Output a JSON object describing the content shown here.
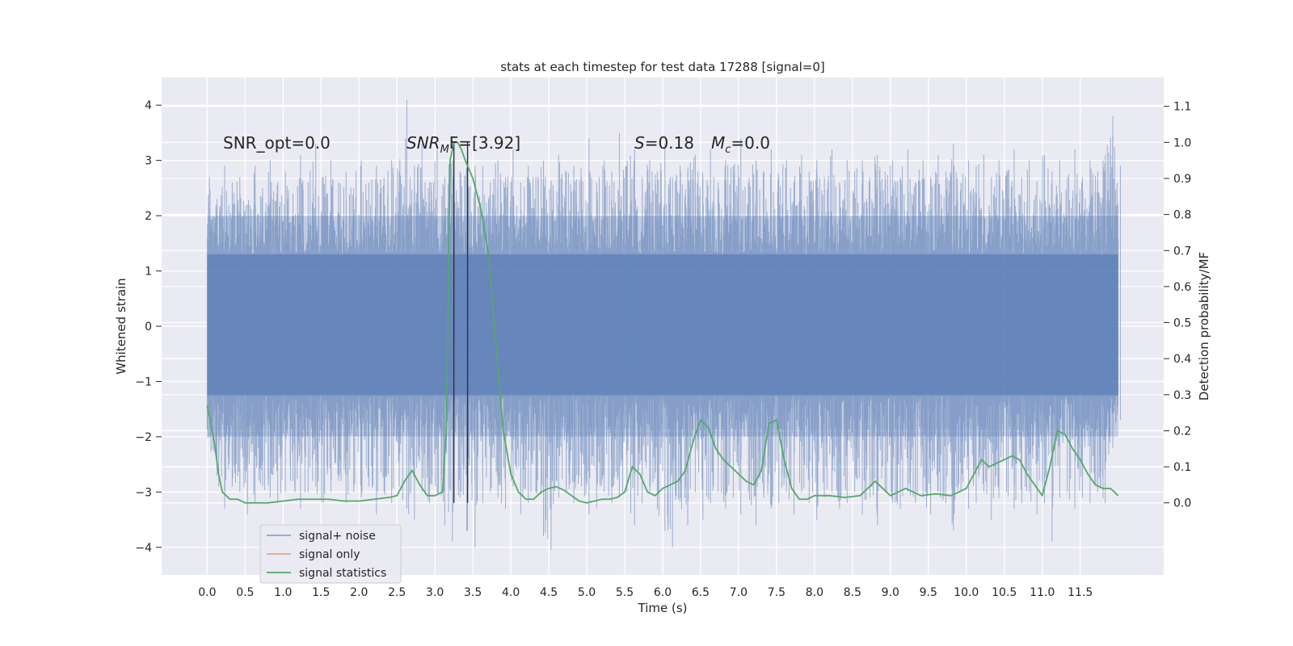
{
  "chart_data": {
    "type": "line",
    "title": "stats at each timestep for test data 17288 [signal=0]",
    "xlabel": "Time (s)",
    "ylabel": "Whitened strain",
    "ylabel_right": "Detection probability/MF",
    "xlim": [
      -0.6,
      12.6
    ],
    "ylim_left": [
      -4.5,
      4.5
    ],
    "ylim_right": [
      -0.2,
      1.18
    ],
    "x_ticks": [
      "0.0",
      "0.5",
      "1.0",
      "1.5",
      "2.0",
      "2.5",
      "3.0",
      "3.5",
      "4.0",
      "4.5",
      "5.0",
      "5.5",
      "6.0",
      "6.5",
      "7.0",
      "7.5",
      "8.0",
      "8.5",
      "9.0",
      "9.5",
      "10.0",
      "10.5",
      "11.0",
      "11.5"
    ],
    "y_ticks_left": [
      "−4",
      "−3",
      "−2",
      "−1",
      "0",
      "1",
      "2",
      "3",
      "4"
    ],
    "y_ticks_right": [
      "0.0",
      "0.1",
      "0.2",
      "0.3",
      "0.4",
      "0.5",
      "0.6",
      "0.7",
      "0.8",
      "0.9",
      "1.0",
      "1.1"
    ],
    "grid": true,
    "annotations": {
      "snr_opt": "SNR_opt=0.0",
      "snr_mf": "SNR",
      "snr_mf_sub": "M",
      "snr_mf_rest": "F=[3.92]",
      "s_label": "S",
      "s_value": "=0.18",
      "mc_label": "M",
      "mc_sub": "c",
      "mc_value": "=0.0"
    },
    "vlines_x": [
      3.25,
      3.43
    ],
    "series": [
      {
        "name": "signal+ noise",
        "color": "#4c72b0",
        "opacity": 0.5,
        "axis": "left",
        "description_x_range": [
          0.0,
          12.0
        ],
        "dense_band": [
          -1.25,
          1.3
        ],
        "x_peaks": [
          0.0,
          0.1,
          0.2,
          0.3,
          0.4,
          0.5,
          0.6,
          0.7,
          0.8,
          0.9,
          1.0,
          1.1,
          1.2,
          1.3,
          1.4,
          1.5,
          1.6,
          1.7,
          1.8,
          1.9,
          2.0,
          2.1,
          2.2,
          2.3,
          2.4,
          2.5,
          2.6,
          2.7,
          2.8,
          2.9,
          3.0,
          3.1,
          3.2,
          3.3,
          3.4,
          3.5,
          3.6,
          3.7,
          3.8,
          3.9,
          4.0,
          4.1,
          4.2,
          4.3,
          4.4,
          4.5,
          4.6,
          4.7,
          4.8,
          4.9,
          5.0,
          5.1,
          5.2,
          5.3,
          5.4,
          5.5,
          5.6,
          5.7,
          5.8,
          5.9,
          6.0,
          6.1,
          6.2,
          6.3,
          6.4,
          6.5,
          6.6,
          6.7,
          6.8,
          6.9,
          7.0,
          7.1,
          7.2,
          7.3,
          7.4,
          7.5,
          7.6,
          7.7,
          7.8,
          7.9,
          8.0,
          8.1,
          8.2,
          8.3,
          8.4,
          8.5,
          8.6,
          8.7,
          8.8,
          8.9,
          9.0,
          9.1,
          9.2,
          9.3,
          9.4,
          9.5,
          9.6,
          9.7,
          9.8,
          9.9,
          10.0,
          10.1,
          10.2,
          10.3,
          10.4,
          10.5,
          10.6,
          10.7,
          10.8,
          10.9,
          11.0,
          11.1,
          11.2,
          11.3,
          11.4,
          11.5,
          11.6,
          11.7,
          11.8,
          11.9,
          12.0
        ],
        "max_envelope": [
          2.7,
          2.3,
          2.9,
          2.6,
          2.7,
          2.2,
          2.9,
          2.5,
          3.0,
          2.6,
          2.8,
          2.4,
          3.1,
          2.6,
          3.3,
          2.7,
          3.0,
          2.6,
          2.8,
          2.5,
          3.0,
          2.6,
          2.9,
          2.7,
          3.0,
          2.8,
          4.1,
          2.9,
          3.3,
          2.6,
          3.2,
          2.7,
          3.0,
          2.8,
          3.1,
          2.9,
          2.9,
          2.6,
          3.0,
          2.7,
          3.2,
          2.6,
          2.9,
          2.7,
          3.0,
          2.6,
          3.1,
          2.8,
          2.9,
          2.7,
          3.4,
          2.6,
          3.0,
          2.8,
          3.5,
          2.9,
          3.2,
          2.7,
          3.0,
          2.8,
          3.3,
          2.7,
          2.9,
          2.8,
          3.1,
          2.7,
          3.2,
          2.6,
          3.0,
          2.9,
          3.4,
          2.6,
          3.0,
          2.8,
          3.2,
          2.7,
          3.0,
          2.6,
          3.1,
          2.8,
          3.0,
          2.7,
          3.2,
          2.6,
          3.0,
          2.8,
          3.0,
          2.7,
          3.1,
          2.8,
          3.0,
          2.7,
          3.2,
          2.6,
          3.0,
          2.7,
          3.1,
          2.8,
          3.3,
          2.6,
          3.0,
          2.9,
          3.1,
          2.7,
          3.0,
          2.8,
          3.2,
          2.7,
          3.0,
          2.6,
          3.1,
          2.8,
          3.0,
          2.7,
          3.2,
          2.7,
          3.0,
          2.8,
          3.1,
          3.8,
          2.9
        ],
        "min_envelope": [
          -2.0,
          -2.7,
          -3.3,
          -2.9,
          -3.0,
          -3.4,
          -3.2,
          -2.9,
          -3.1,
          -3.2,
          -3.0,
          -2.8,
          -3.3,
          -3.0,
          -2.9,
          -3.2,
          -3.0,
          -2.8,
          -3.2,
          -3.0,
          -3.1,
          -2.9,
          -3.4,
          -3.0,
          -3.2,
          -2.9,
          -3.3,
          -3.5,
          -3.0,
          -3.2,
          -3.0,
          -3.6,
          -3.9,
          -3.1,
          -3.7,
          -4.0,
          -3.2,
          -3.0,
          -3.1,
          -3.3,
          -2.9,
          -3.4,
          -3.2,
          -3.0,
          -3.8,
          -4.05,
          -3.1,
          -3.0,
          -3.2,
          -2.9,
          -3.4,
          -3.3,
          -3.0,
          -3.2,
          -3.1,
          -3.0,
          -3.6,
          -3.2,
          -3.0,
          -3.3,
          -3.7,
          -4.0,
          -3.1,
          -3.6,
          -3.0,
          -3.5,
          -3.2,
          -3.0,
          -3.3,
          -3.1,
          -3.4,
          -3.0,
          -3.6,
          -3.1,
          -3.3,
          -3.2,
          -3.0,
          -3.4,
          -3.0,
          -3.2,
          -3.5,
          -3.1,
          -3.0,
          -3.3,
          -3.2,
          -3.0,
          -3.4,
          -3.1,
          -3.6,
          -3.0,
          -3.2,
          -3.3,
          -3.0,
          -3.2,
          -3.1,
          -3.4,
          -3.0,
          -3.2,
          -3.7,
          -3.0,
          -3.3,
          -3.2,
          -3.0,
          -3.5,
          -3.1,
          -3.0,
          -3.3,
          -3.2,
          -3.0,
          -3.4,
          -3.2,
          -3.9,
          -3.1,
          -3.0,
          -3.3,
          -3.1,
          -3.2,
          -3.0,
          -3.2,
          -2.2,
          -1.7
        ]
      },
      {
        "name": "signal only",
        "color": "#dd8452",
        "axis": "left",
        "x": [],
        "y": []
      },
      {
        "name": "signal statistics",
        "color": "#55a868",
        "axis": "right",
        "x": [
          0.0,
          0.05,
          0.1,
          0.15,
          0.2,
          0.3,
          0.4,
          0.5,
          0.6,
          0.8,
          1.0,
          1.2,
          1.4,
          1.6,
          1.8,
          2.0,
          2.2,
          2.4,
          2.5,
          2.6,
          2.7,
          2.8,
          2.9,
          3.0,
          3.1,
          3.15,
          3.2,
          3.25,
          3.3,
          3.35,
          3.4,
          3.5,
          3.6,
          3.7,
          3.8,
          3.9,
          4.0,
          4.1,
          4.2,
          4.3,
          4.4,
          4.5,
          4.6,
          4.7,
          4.8,
          4.9,
          5.0,
          5.1,
          5.2,
          5.3,
          5.4,
          5.5,
          5.6,
          5.7,
          5.8,
          5.9,
          6.0,
          6.1,
          6.2,
          6.3,
          6.4,
          6.5,
          6.6,
          6.7,
          6.8,
          6.9,
          7.0,
          7.1,
          7.2,
          7.3,
          7.4,
          7.5,
          7.6,
          7.7,
          7.8,
          7.9,
          8.0,
          8.2,
          8.4,
          8.6,
          8.8,
          9.0,
          9.2,
          9.4,
          9.6,
          9.8,
          10.0,
          10.1,
          10.2,
          10.3,
          10.4,
          10.5,
          10.6,
          10.7,
          10.8,
          10.9,
          11.0,
          11.1,
          11.2,
          11.3,
          11.4,
          11.5,
          11.6,
          11.7,
          11.8,
          11.9,
          12.0
        ],
        "y": [
          0.27,
          0.22,
          0.16,
          0.08,
          0.03,
          0.01,
          0.01,
          0.0,
          0.0,
          0.0,
          0.005,
          0.01,
          0.01,
          0.01,
          0.005,
          0.005,
          0.01,
          0.015,
          0.02,
          0.06,
          0.09,
          0.05,
          0.02,
          0.02,
          0.03,
          0.2,
          0.95,
          1.0,
          1.0,
          0.98,
          0.95,
          0.9,
          0.82,
          0.7,
          0.45,
          0.2,
          0.08,
          0.03,
          0.01,
          0.01,
          0.03,
          0.04,
          0.045,
          0.035,
          0.02,
          0.005,
          0.0,
          0.005,
          0.01,
          0.01,
          0.015,
          0.03,
          0.1,
          0.08,
          0.03,
          0.02,
          0.04,
          0.05,
          0.06,
          0.09,
          0.17,
          0.23,
          0.21,
          0.15,
          0.12,
          0.1,
          0.08,
          0.06,
          0.05,
          0.09,
          0.22,
          0.23,
          0.12,
          0.04,
          0.01,
          0.01,
          0.02,
          0.02,
          0.015,
          0.02,
          0.06,
          0.02,
          0.04,
          0.02,
          0.025,
          0.02,
          0.04,
          0.08,
          0.12,
          0.1,
          0.11,
          0.12,
          0.13,
          0.12,
          0.08,
          0.05,
          0.02,
          0.1,
          0.2,
          0.19,
          0.15,
          0.12,
          0.08,
          0.05,
          0.04,
          0.04,
          0.02
        ]
      }
    ],
    "legend": {
      "placement": "lower-left",
      "entries": [
        "signal+ noise",
        "signal only",
        "signal statistics"
      ]
    }
  }
}
